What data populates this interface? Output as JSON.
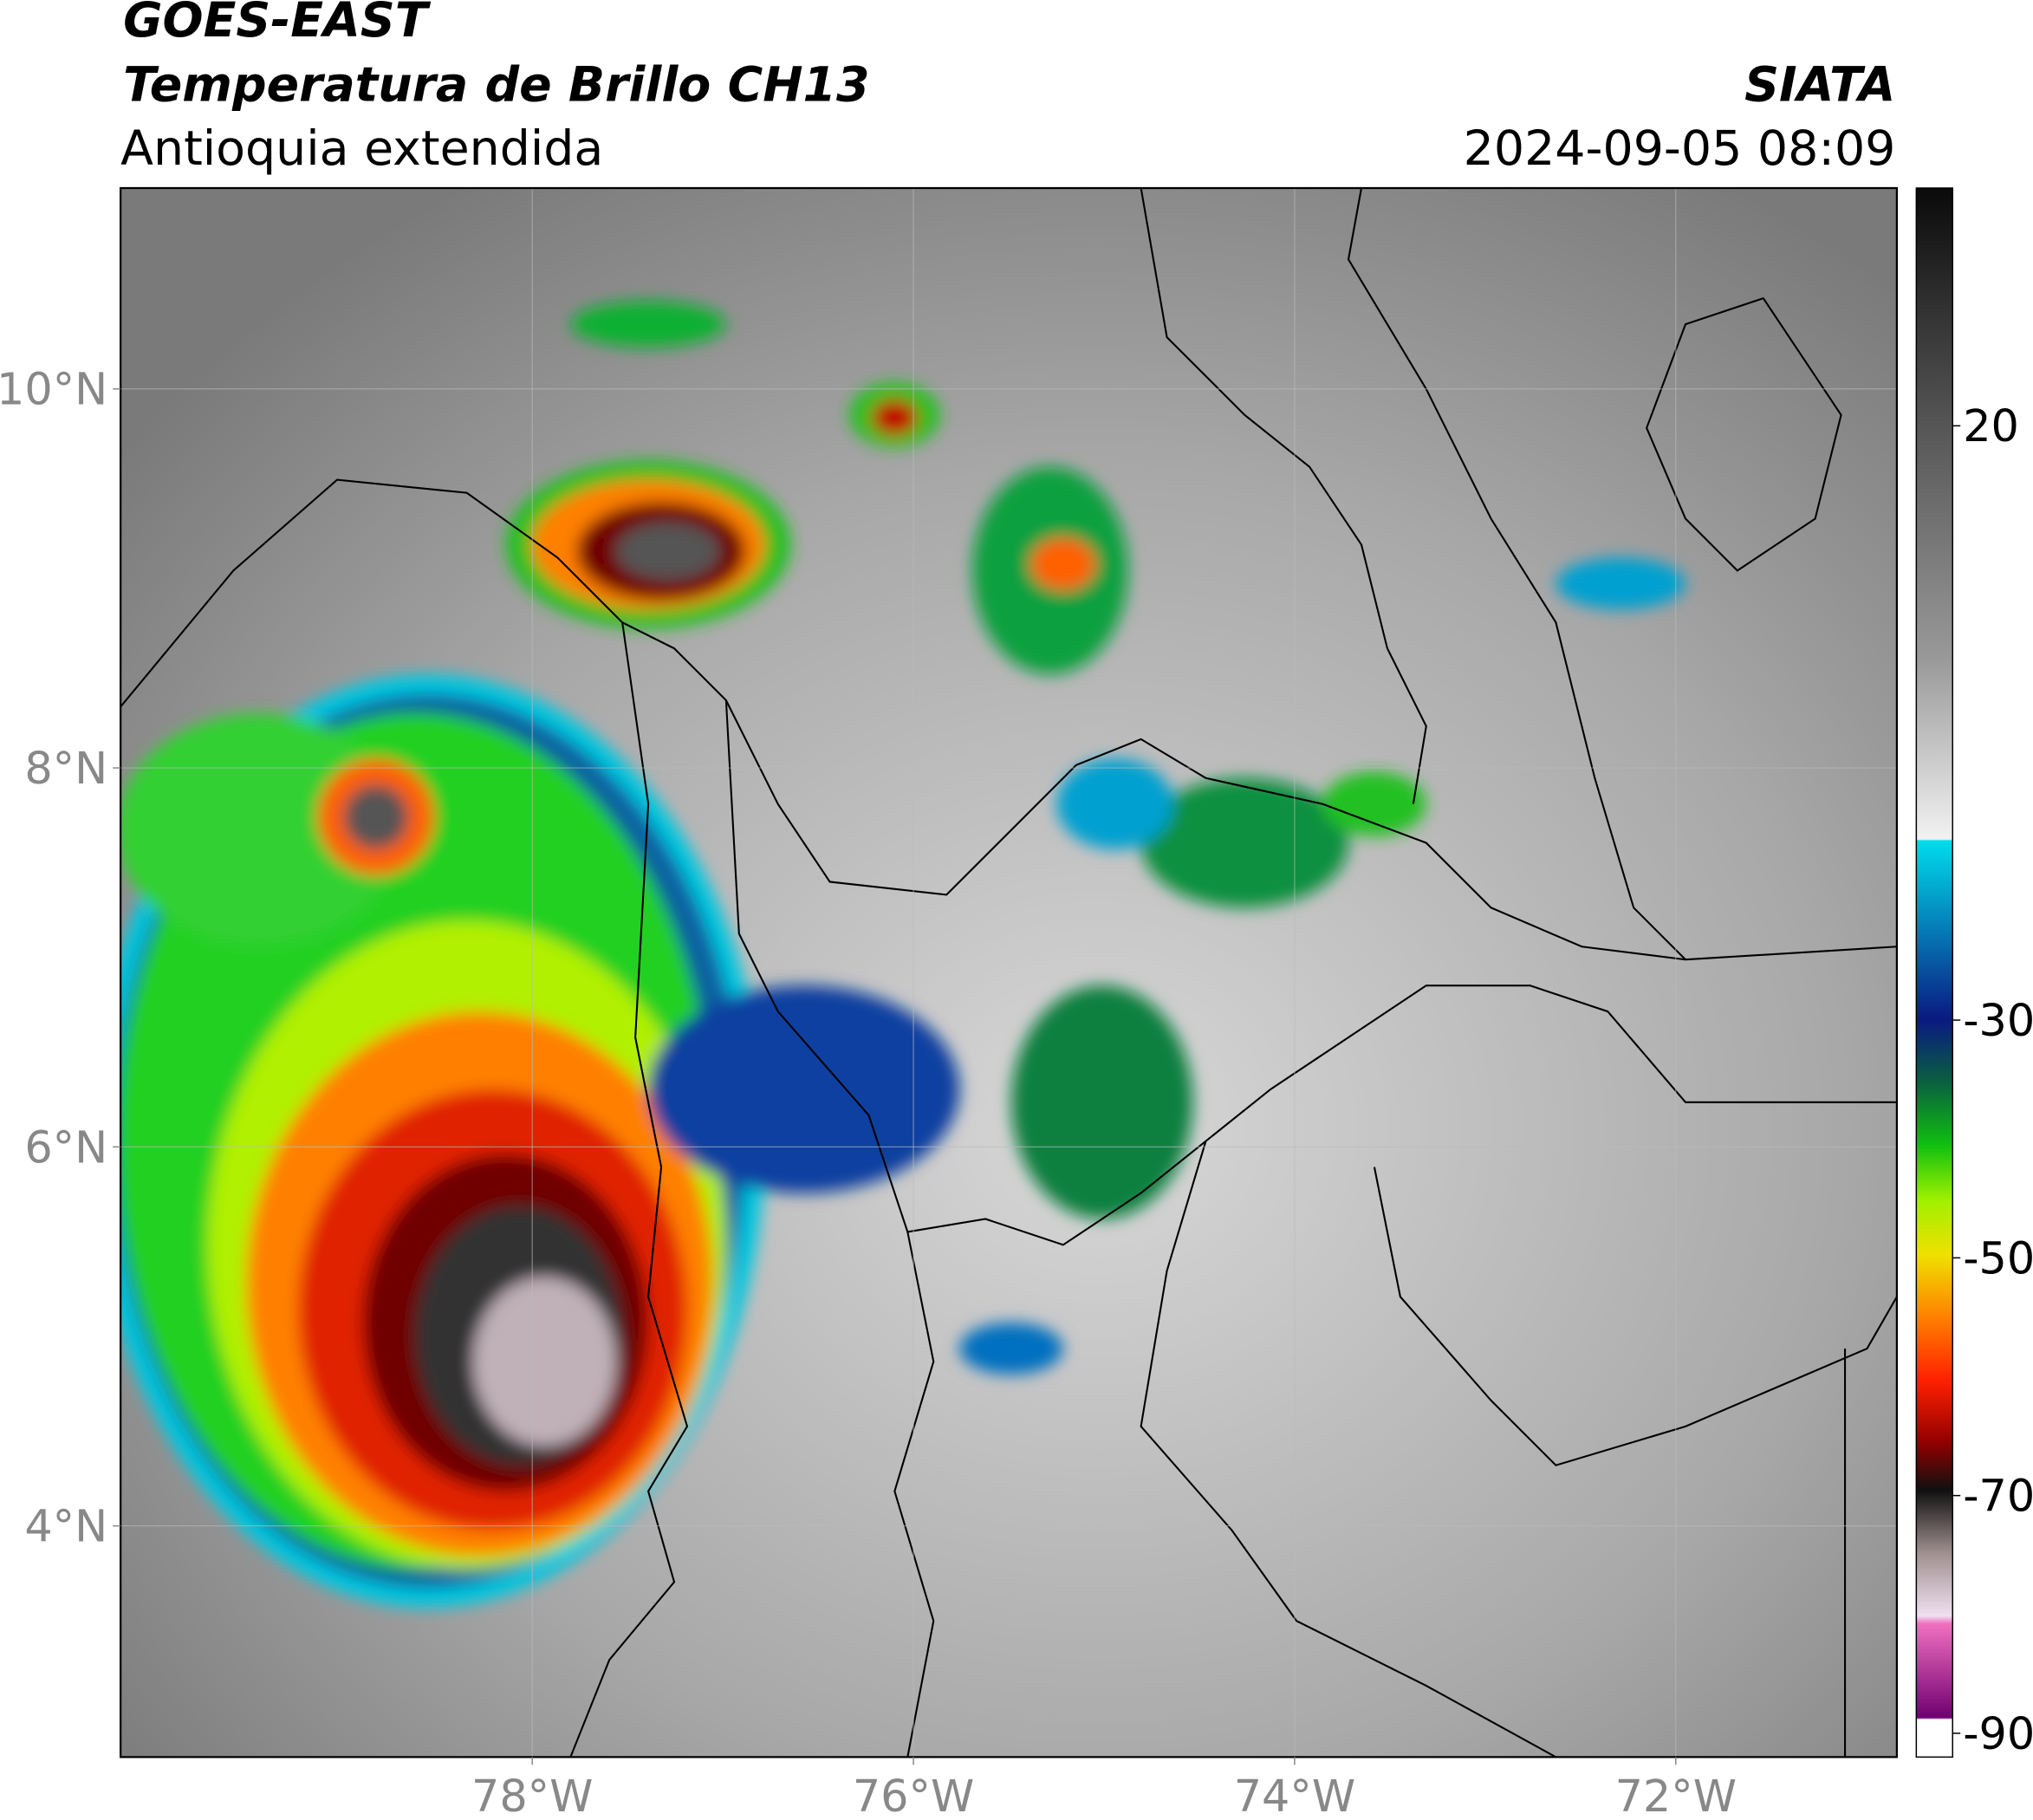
{
  "header": {
    "title": "GOES-EAST",
    "subtitle": "Temperatura de Brillo CH13",
    "region": "Antioquia extendida",
    "source": "SIATA",
    "datetime": "2024-09-05 08:09"
  },
  "map": {
    "xlim": [
      -80.16,
      -70.84
    ],
    "ylim": [
      2.78,
      11.06
    ],
    "xticks": [
      {
        "value": -78,
        "label": "78°W"
      },
      {
        "value": -76,
        "label": "76°W"
      },
      {
        "value": -74,
        "label": "74°W"
      },
      {
        "value": -72,
        "label": "72°W"
      }
    ],
    "yticks": [
      {
        "value": 4,
        "label": "4°N"
      },
      {
        "value": 6,
        "label": "6°N"
      },
      {
        "value": 8,
        "label": "8°N"
      },
      {
        "value": 10,
        "label": "10°N"
      }
    ]
  },
  "colorbar": {
    "lim": [
      -92,
      40
    ],
    "ticks": [
      20,
      -30,
      -50,
      -70,
      -90
    ]
  }
}
